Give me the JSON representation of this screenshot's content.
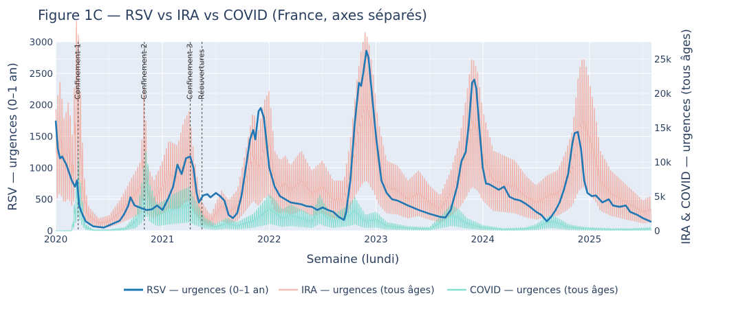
{
  "chart_data": {
    "type": "line",
    "title": "Figure 1C — RSV vs IRA vs COVID (France, axes séparés)",
    "xlabel": "Semaine (lundi)",
    "ylabel_left": "RSV — urgences (0–1 an)",
    "ylabel_right": "IRA & COVID — urgences (tous âges)",
    "x_ticks": [
      "2020",
      "2021",
      "2022",
      "2023",
      "2024",
      "2025"
    ],
    "y_left_ticks": [
      "0",
      "500",
      "1000",
      "1500",
      "2000",
      "2500",
      "3000"
    ],
    "y_right_ticks": [
      "0",
      "5k",
      "10k",
      "15k",
      "20k",
      "25k"
    ],
    "x_range": [
      2020.0,
      2025.58
    ],
    "y_left_range": [
      0,
      3000
    ],
    "y_right_range": [
      0,
      27500
    ],
    "grid": true,
    "legend_position": "bottom",
    "annotations": [
      {
        "label": "Confinement-1",
        "x": 2020.21
      },
      {
        "label": "Confinement-2",
        "x": 2020.83
      },
      {
        "label": "Confinement-3",
        "x": 2021.26
      },
      {
        "label": "Réouvertures",
        "x": 2021.37
      }
    ],
    "series": [
      {
        "name": "RSV — urgences (0–1 an)",
        "axis": "left",
        "color": "#1f77b4",
        "points": [
          [
            2020.0,
            1750
          ],
          [
            2020.02,
            1300
          ],
          [
            2020.04,
            1150
          ],
          [
            2020.06,
            1180
          ],
          [
            2020.1,
            1050
          ],
          [
            2020.15,
            800
          ],
          [
            2020.18,
            700
          ],
          [
            2020.2,
            800
          ],
          [
            2020.22,
            400
          ],
          [
            2020.24,
            300
          ],
          [
            2020.28,
            150
          ],
          [
            2020.35,
            70
          ],
          [
            2020.45,
            50
          ],
          [
            2020.52,
            100
          ],
          [
            2020.6,
            160
          ],
          [
            2020.64,
            260
          ],
          [
            2020.68,
            400
          ],
          [
            2020.7,
            530
          ],
          [
            2020.74,
            400
          ],
          [
            2020.8,
            360
          ],
          [
            2020.85,
            330
          ],
          [
            2020.9,
            340
          ],
          [
            2020.95,
            400
          ],
          [
            2021.0,
            330
          ],
          [
            2021.05,
            500
          ],
          [
            2021.1,
            700
          ],
          [
            2021.14,
            1050
          ],
          [
            2021.18,
            900
          ],
          [
            2021.22,
            1150
          ],
          [
            2021.26,
            1180
          ],
          [
            2021.29,
            1000
          ],
          [
            2021.32,
            600
          ],
          [
            2021.34,
            450
          ],
          [
            2021.38,
            560
          ],
          [
            2021.42,
            580
          ],
          [
            2021.45,
            530
          ],
          [
            2021.5,
            600
          ],
          [
            2021.54,
            550
          ],
          [
            2021.58,
            480
          ],
          [
            2021.62,
            250
          ],
          [
            2021.66,
            200
          ],
          [
            2021.7,
            280
          ],
          [
            2021.74,
            550
          ],
          [
            2021.78,
            1000
          ],
          [
            2021.82,
            1450
          ],
          [
            2021.85,
            1600
          ],
          [
            2021.87,
            1450
          ],
          [
            2021.9,
            1900
          ],
          [
            2021.92,
            1950
          ],
          [
            2021.95,
            1800
          ],
          [
            2022.0,
            1000
          ],
          [
            2022.05,
            700
          ],
          [
            2022.1,
            550
          ],
          [
            2022.15,
            500
          ],
          [
            2022.2,
            450
          ],
          [
            2022.3,
            420
          ],
          [
            2022.35,
            390
          ],
          [
            2022.4,
            380
          ],
          [
            2022.45,
            330
          ],
          [
            2022.5,
            370
          ],
          [
            2022.55,
            330
          ],
          [
            2022.6,
            300
          ],
          [
            2022.65,
            220
          ],
          [
            2022.7,
            170
          ],
          [
            2022.72,
            290
          ],
          [
            2022.76,
            800
          ],
          [
            2022.8,
            1700
          ],
          [
            2022.84,
            2350
          ],
          [
            2022.86,
            2300
          ],
          [
            2022.88,
            2500
          ],
          [
            2022.91,
            2860
          ],
          [
            2022.93,
            2750
          ],
          [
            2022.96,
            2200
          ],
          [
            2023.0,
            1500
          ],
          [
            2023.05,
            800
          ],
          [
            2023.1,
            600
          ],
          [
            2023.15,
            500
          ],
          [
            2023.2,
            480
          ],
          [
            2023.3,
            400
          ],
          [
            2023.4,
            330
          ],
          [
            2023.5,
            270
          ],
          [
            2023.6,
            220
          ],
          [
            2023.65,
            210
          ],
          [
            2023.7,
            330
          ],
          [
            2023.76,
            700
          ],
          [
            2023.8,
            1100
          ],
          [
            2023.84,
            1250
          ],
          [
            2023.87,
            1700
          ],
          [
            2023.9,
            2350
          ],
          [
            2023.92,
            2400
          ],
          [
            2023.94,
            2250
          ],
          [
            2023.97,
            1600
          ],
          [
            2024.0,
            1000
          ],
          [
            2024.03,
            750
          ],
          [
            2024.06,
            740
          ],
          [
            2024.1,
            700
          ],
          [
            2024.15,
            650
          ],
          [
            2024.2,
            700
          ],
          [
            2024.25,
            540
          ],
          [
            2024.3,
            500
          ],
          [
            2024.35,
            480
          ],
          [
            2024.4,
            430
          ],
          [
            2024.45,
            370
          ],
          [
            2024.5,
            300
          ],
          [
            2024.55,
            250
          ],
          [
            2024.6,
            150
          ],
          [
            2024.64,
            220
          ],
          [
            2024.68,
            320
          ],
          [
            2024.72,
            450
          ],
          [
            2024.76,
            650
          ],
          [
            2024.8,
            900
          ],
          [
            2024.84,
            1400
          ],
          [
            2024.86,
            1550
          ],
          [
            2024.89,
            1570
          ],
          [
            2024.92,
            1300
          ],
          [
            2024.95,
            800
          ],
          [
            2024.98,
            600
          ],
          [
            2025.02,
            550
          ],
          [
            2025.06,
            560
          ],
          [
            2025.12,
            450
          ],
          [
            2025.18,
            500
          ],
          [
            2025.22,
            400
          ],
          [
            2025.28,
            380
          ],
          [
            2025.34,
            400
          ],
          [
            2025.38,
            300
          ],
          [
            2025.45,
            250
          ],
          [
            2025.5,
            200
          ],
          [
            2025.54,
            170
          ],
          [
            2025.58,
            140
          ]
        ]
      },
      {
        "name": "IRA — urgences (tous âges)",
        "axis": "right",
        "color": "#f2a597",
        "points": [
          [
            2020.0,
            12000
          ],
          [
            2020.04,
            15000
          ],
          [
            2020.08,
            11000
          ],
          [
            2020.12,
            13000
          ],
          [
            2020.16,
            9000
          ],
          [
            2020.2,
            23000
          ],
          [
            2020.23,
            14000
          ],
          [
            2020.26,
            6000
          ],
          [
            2020.3,
            2500
          ],
          [
            2020.4,
            1200
          ],
          [
            2020.5,
            1500
          ],
          [
            2020.6,
            3000
          ],
          [
            2020.7,
            5000
          ],
          [
            2020.8,
            7000
          ],
          [
            2020.83,
            15000
          ],
          [
            2020.86,
            6500
          ],
          [
            2020.92,
            5000
          ],
          [
            2021.0,
            7000
          ],
          [
            2021.06,
            9000
          ],
          [
            2021.14,
            8500
          ],
          [
            2021.2,
            11000
          ],
          [
            2021.25,
            12000
          ],
          [
            2021.3,
            7000
          ],
          [
            2021.36,
            3000
          ],
          [
            2021.45,
            1500
          ],
          [
            2021.55,
            4000
          ],
          [
            2021.62,
            3000
          ],
          [
            2021.7,
            4000
          ],
          [
            2021.78,
            8000
          ],
          [
            2021.85,
            12000
          ],
          [
            2021.9,
            10000
          ],
          [
            2021.95,
            13000
          ],
          [
            2022.0,
            14000
          ],
          [
            2022.05,
            8000
          ],
          [
            2022.1,
            7000
          ],
          [
            2022.15,
            7500
          ],
          [
            2022.2,
            6500
          ],
          [
            2022.3,
            8000
          ],
          [
            2022.4,
            6000
          ],
          [
            2022.5,
            7000
          ],
          [
            2022.6,
            5000
          ],
          [
            2022.7,
            5000
          ],
          [
            2022.76,
            9000
          ],
          [
            2022.82,
            15000
          ],
          [
            2022.86,
            18000
          ],
          [
            2022.9,
            20000
          ],
          [
            2022.93,
            19000
          ],
          [
            2022.97,
            16000
          ],
          [
            2023.02,
            11000
          ],
          [
            2023.1,
            7000
          ],
          [
            2023.2,
            6500
          ],
          [
            2023.3,
            5000
          ],
          [
            2023.4,
            6000
          ],
          [
            2023.5,
            4500
          ],
          [
            2023.6,
            3500
          ],
          [
            2023.7,
            6000
          ],
          [
            2023.78,
            9000
          ],
          [
            2023.84,
            13000
          ],
          [
            2023.9,
            17500
          ],
          [
            2023.95,
            16000
          ],
          [
            2024.0,
            12000
          ],
          [
            2024.1,
            8000
          ],
          [
            2024.2,
            7500
          ],
          [
            2024.3,
            7000
          ],
          [
            2024.4,
            5500
          ],
          [
            2024.5,
            4500
          ],
          [
            2024.6,
            5500
          ],
          [
            2024.7,
            6000
          ],
          [
            2024.78,
            8000
          ],
          [
            2024.84,
            10000
          ],
          [
            2024.9,
            16000
          ],
          [
            2024.94,
            17500
          ],
          [
            2024.98,
            16000
          ],
          [
            2025.05,
            12000
          ],
          [
            2025.1,
            8000
          ],
          [
            2025.2,
            6000
          ],
          [
            2025.3,
            5000
          ],
          [
            2025.4,
            4000
          ],
          [
            2025.5,
            3000
          ],
          [
            2025.58,
            3500
          ]
        ]
      },
      {
        "name": "COVID — urgences (tous âges)",
        "axis": "right",
        "color": "#5fd7c2",
        "points": [
          [
            2020.0,
            0
          ],
          [
            2020.15,
            0
          ],
          [
            2020.18,
            3000
          ],
          [
            2020.21,
            7000
          ],
          [
            2020.24,
            3500
          ],
          [
            2020.28,
            600
          ],
          [
            2020.35,
            100
          ],
          [
            2020.5,
            100
          ],
          [
            2020.65,
            300
          ],
          [
            2020.75,
            1500
          ],
          [
            2020.8,
            4000
          ],
          [
            2020.85,
            8000
          ],
          [
            2020.88,
            4500
          ],
          [
            2020.95,
            2500
          ],
          [
            2021.0,
            2800
          ],
          [
            2021.1,
            3500
          ],
          [
            2021.2,
            4000
          ],
          [
            2021.25,
            4200
          ],
          [
            2021.3,
            3000
          ],
          [
            2021.4,
            1200
          ],
          [
            2021.5,
            600
          ],
          [
            2021.6,
            1200
          ],
          [
            2021.7,
            800
          ],
          [
            2021.85,
            1600
          ],
          [
            2021.95,
            2800
          ],
          [
            2022.0,
            3500
          ],
          [
            2022.05,
            3000
          ],
          [
            2022.12,
            2000
          ],
          [
            2022.2,
            2500
          ],
          [
            2022.3,
            2000
          ],
          [
            2022.4,
            1500
          ],
          [
            2022.47,
            3500
          ],
          [
            2022.52,
            2500
          ],
          [
            2022.6,
            1500
          ],
          [
            2022.75,
            2500
          ],
          [
            2022.8,
            3200
          ],
          [
            2022.9,
            1500
          ],
          [
            2023.0,
            1800
          ],
          [
            2023.1,
            800
          ],
          [
            2023.2,
            600
          ],
          [
            2023.3,
            400
          ],
          [
            2023.5,
            300
          ],
          [
            2023.62,
            1500
          ],
          [
            2023.7,
            2500
          ],
          [
            2023.78,
            2000
          ],
          [
            2023.85,
            1200
          ],
          [
            2024.0,
            500
          ],
          [
            2024.2,
            200
          ],
          [
            2024.4,
            300
          ],
          [
            2024.5,
            600
          ],
          [
            2024.58,
            1200
          ],
          [
            2024.65,
            1500
          ],
          [
            2024.72,
            1100
          ],
          [
            2024.8,
            600
          ],
          [
            2024.9,
            400
          ],
          [
            2025.0,
            300
          ],
          [
            2025.2,
            200
          ],
          [
            2025.4,
            200
          ],
          [
            2025.58,
            300
          ]
        ]
      }
    ]
  }
}
